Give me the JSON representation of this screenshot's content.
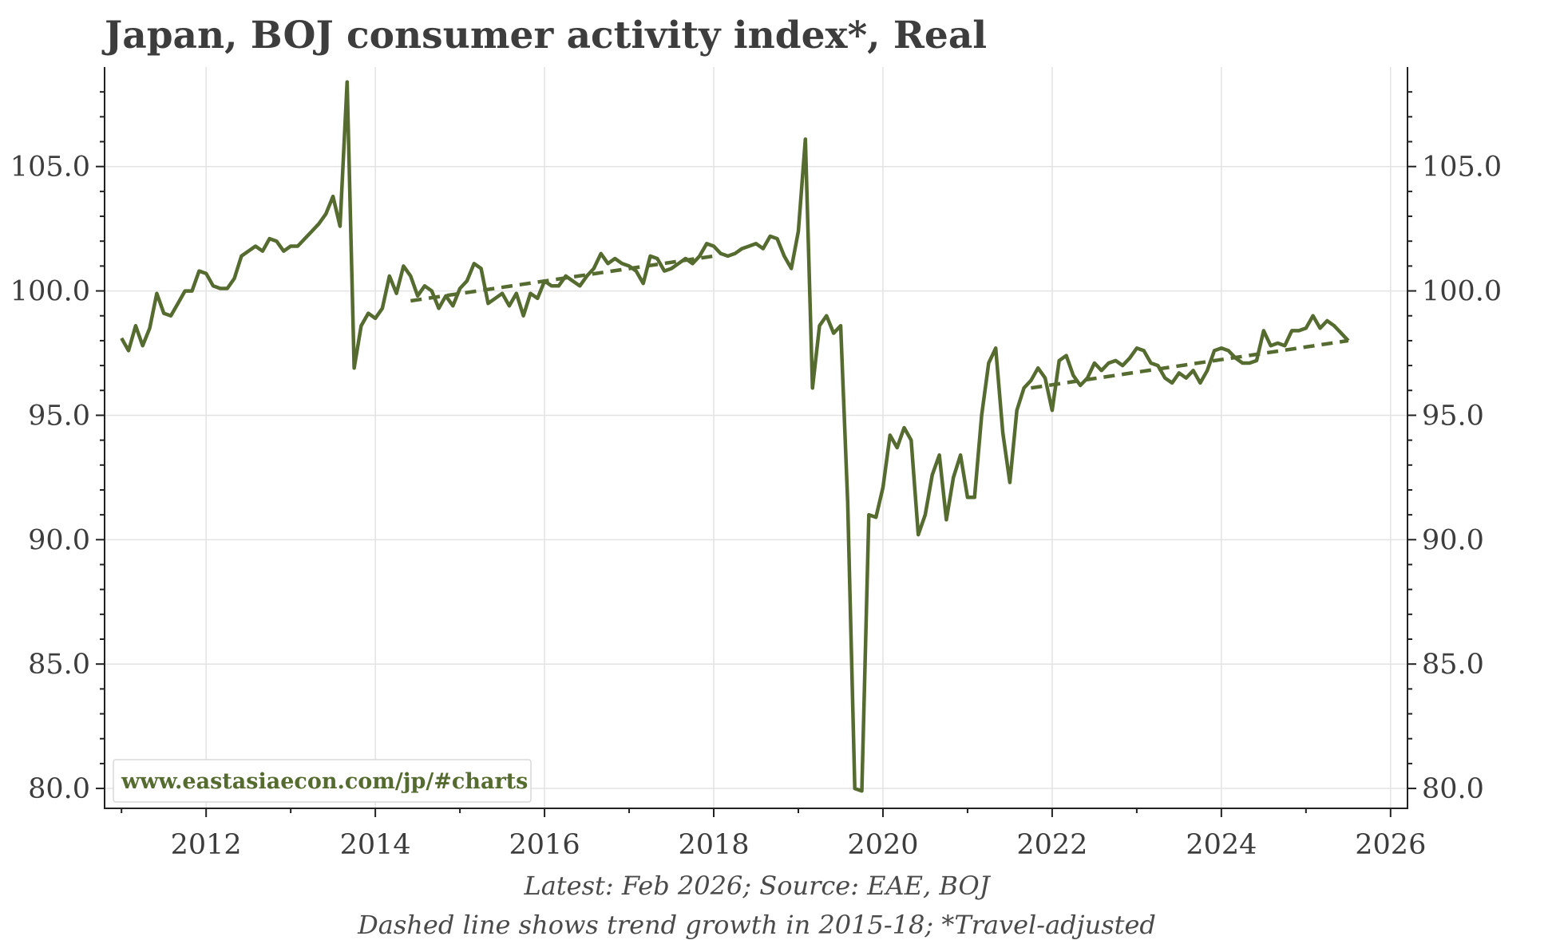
{
  "chart_data": {
    "type": "line",
    "title": "Japan, BOJ consumer activity index*, Real",
    "xlabel": "",
    "ylabel": "",
    "xlim": [
      2010.8,
      2026.2
    ],
    "ylim": [
      79.2,
      109.0
    ],
    "x_ticks": [
      2012,
      2014,
      2016,
      2018,
      2020,
      2022,
      2024,
      2026
    ],
    "x_tick_labels": [
      "2012",
      "2014",
      "2016",
      "2018",
      "2020",
      "2022",
      "2024",
      "2026"
    ],
    "y_ticks": [
      80,
      85,
      90,
      95,
      100,
      105
    ],
    "y_tick_labels": [
      "80.0",
      "85.0",
      "90.0",
      "95.0",
      "100.0",
      "105.0"
    ],
    "grid": true,
    "line_color": "#556b2f",
    "series": [
      {
        "style": "solid",
        "x": [
          2011.0,
          2011.083,
          2011.167,
          2011.25,
          2011.333,
          2011.417,
          2011.5,
          2011.583,
          2011.667,
          2011.75,
          2011.833,
          2011.917,
          2012.0,
          2012.083,
          2012.167,
          2012.25,
          2012.333,
          2012.417,
          2012.5,
          2012.583,
          2012.667,
          2012.75,
          2012.833,
          2012.917,
          2013.0,
          2013.083,
          2013.167,
          2013.25,
          2013.333,
          2013.417,
          2013.5,
          2013.583,
          2013.667,
          2013.75,
          2013.833,
          2013.917,
          2014.0,
          2014.083,
          2014.167,
          2014.25,
          2014.333,
          2014.417,
          2014.5,
          2014.583,
          2014.667,
          2014.75,
          2014.833,
          2014.917,
          2015.0,
          2015.083,
          2015.167,
          2015.25,
          2015.333,
          2015.417,
          2015.5,
          2015.583,
          2015.667,
          2015.75,
          2015.833,
          2015.917,
          2016.0,
          2016.083,
          2016.167,
          2016.25,
          2016.333,
          2016.417,
          2016.5,
          2016.583,
          2016.667,
          2016.75,
          2016.833,
          2016.917,
          2017.0,
          2017.083,
          2017.167,
          2017.25,
          2017.333,
          2017.417,
          2017.5,
          2017.583,
          2017.667,
          2017.75,
          2017.833,
          2017.917,
          2018.0,
          2018.083,
          2018.167,
          2018.25,
          2018.333,
          2018.417,
          2018.5,
          2018.583,
          2018.667,
          2018.75,
          2018.833,
          2018.917,
          2019.0,
          2019.083,
          2019.167,
          2019.25,
          2019.333,
          2019.417,
          2019.5,
          2019.583,
          2019.667,
          2019.75,
          2019.833,
          2019.917,
          2020.0,
          2020.083,
          2020.167,
          2020.25,
          2020.333,
          2020.417,
          2020.5,
          2020.583,
          2020.667,
          2020.75,
          2020.833,
          2020.917,
          2021.0,
          2021.083,
          2021.167,
          2021.25,
          2021.333,
          2021.417,
          2021.5,
          2021.583,
          2021.667,
          2021.75,
          2021.833,
          2021.917,
          2022.0,
          2022.083,
          2022.167,
          2022.25,
          2022.333,
          2022.417,
          2022.5,
          2022.583,
          2022.667,
          2022.75,
          2022.833,
          2022.917,
          2023.0,
          2023.083,
          2023.167,
          2023.25,
          2023.333,
          2023.417,
          2023.5,
          2023.583,
          2023.667,
          2023.75,
          2023.833,
          2023.917,
          2024.0,
          2024.083,
          2024.167,
          2024.25,
          2024.333,
          2024.417,
          2024.5,
          2024.583,
          2024.667,
          2024.75,
          2024.833,
          2024.917,
          2025.0,
          2025.083,
          2025.167,
          2025.25,
          2025.333,
          2025.417,
          2025.5
        ],
        "y": [
          98.1,
          97.6,
          98.6,
          97.8,
          98.5,
          99.9,
          99.1,
          99.0,
          99.5,
          100.0,
          100.0,
          100.8,
          100.7,
          100.2,
          100.1,
          100.1,
          100.5,
          101.4,
          101.6,
          101.8,
          101.6,
          102.1,
          102.0,
          101.6,
          101.8,
          101.8,
          102.1,
          102.4,
          102.7,
          103.1,
          103.8,
          102.6,
          108.4,
          96.9,
          98.6,
          99.1,
          98.9,
          99.3,
          100.6,
          99.9,
          101.0,
          100.6,
          99.8,
          100.2,
          100.0,
          99.3,
          99.8,
          99.4,
          100.1,
          100.4,
          101.1,
          100.9,
          99.5,
          99.7,
          99.9,
          99.4,
          99.9,
          99.0,
          99.9,
          99.7,
          100.4,
          100.2,
          100.2,
          100.6,
          100.4,
          100.2,
          100.6,
          100.9,
          101.5,
          101.1,
          101.3,
          101.1,
          101.0,
          100.8,
          100.3,
          101.4,
          101.3,
          100.8,
          100.9,
          101.1,
          101.3,
          101.1,
          101.4,
          101.9,
          101.8,
          101.5,
          101.4,
          101.5,
          101.7,
          101.8,
          101.9,
          101.7,
          102.2,
          102.1,
          101.4,
          100.9,
          102.4,
          106.1,
          96.1,
          98.6,
          99.0,
          98.3,
          98.6,
          91.5,
          80.0,
          79.9,
          91.0,
          90.9,
          92.1,
          94.2,
          93.7,
          94.5,
          94.0,
          90.2,
          91.0,
          92.6,
          93.4,
          90.8,
          92.5,
          93.4,
          91.7,
          91.7,
          95.0,
          97.1,
          97.7,
          94.3,
          92.3,
          95.2,
          96.1,
          96.4,
          96.9,
          96.5,
          95.2,
          97.2,
          97.4,
          96.6,
          96.2,
          96.5,
          97.1,
          96.8,
          97.1,
          97.2,
          97.0,
          97.3,
          97.7,
          97.6,
          97.1,
          97.0,
          96.5,
          96.3,
          96.7,
          96.5,
          96.8,
          96.3,
          96.8,
          97.6,
          97.7,
          97.6,
          97.3,
          97.1,
          97.1,
          97.2,
          98.4,
          97.8,
          97.9,
          97.8,
          98.4,
          98.4,
          98.5,
          99.0,
          98.5,
          98.8,
          98.6,
          98.3,
          98.0
        ]
      },
      {
        "style": "dashed",
        "x": [
          2014.417,
          2018.0
        ],
        "y": [
          99.6,
          101.4
        ]
      },
      {
        "style": "dashed",
        "x": [
          2021.75,
          2025.5
        ],
        "y": [
          96.1,
          98.0
        ]
      }
    ],
    "footnotes": [
      "Latest: Feb 2026; Source: EAE, BOJ",
      "Dashed line shows trend growth in 2015-18; *Travel-adjusted"
    ],
    "watermark": "www.eastasiaecon.com/jp/#charts"
  }
}
